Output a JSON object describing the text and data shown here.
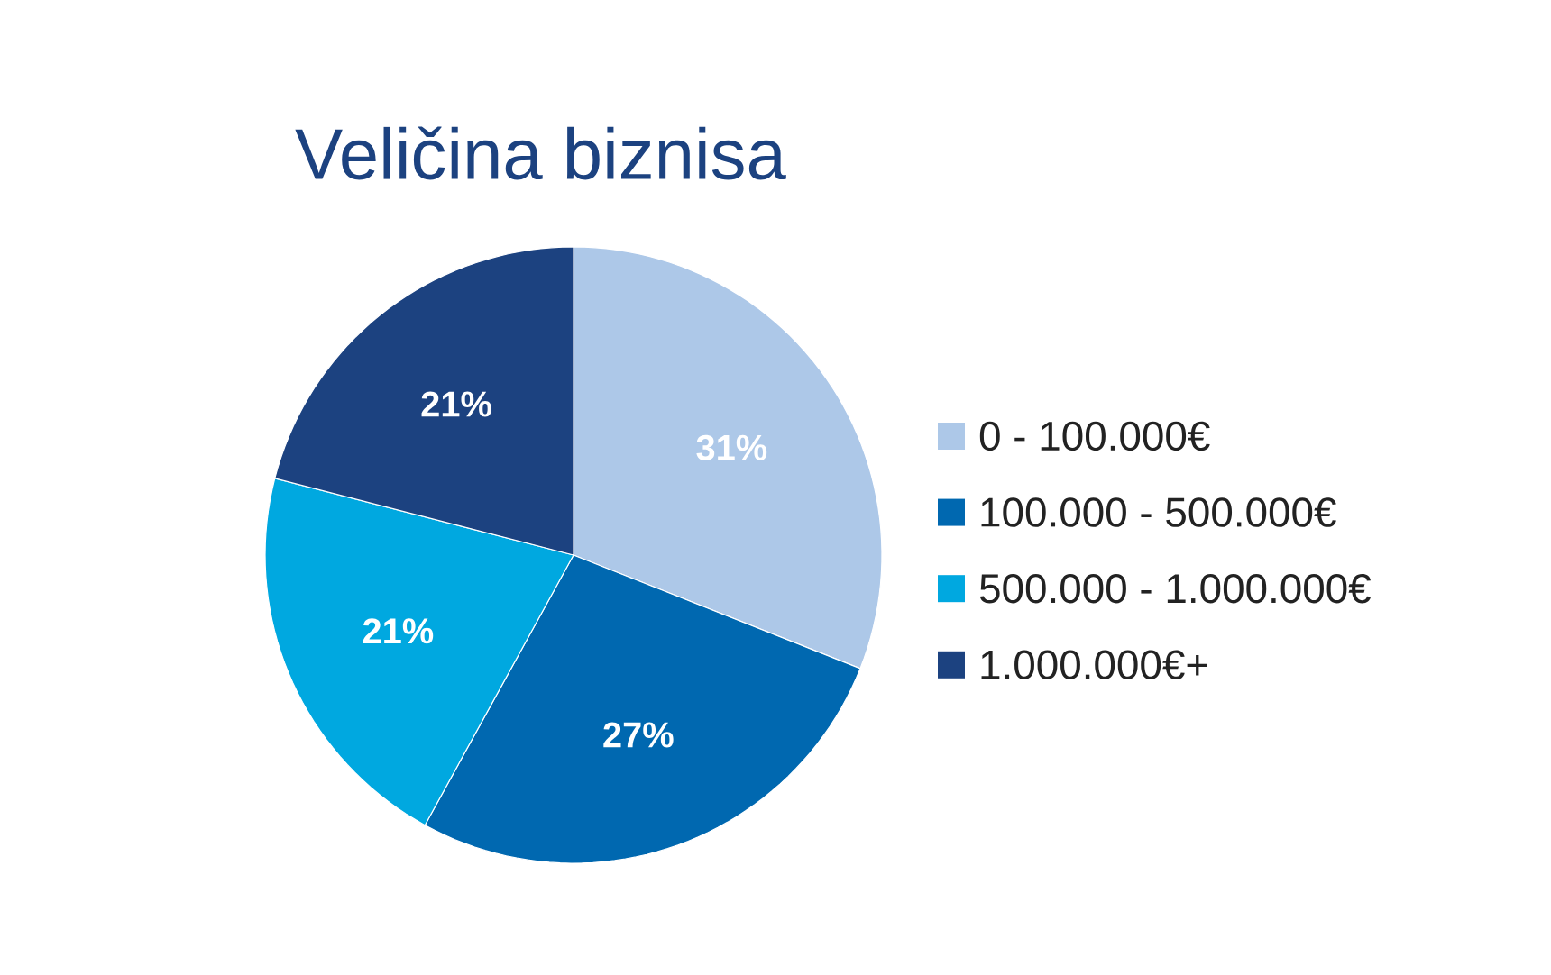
{
  "chart_data": {
    "type": "pie",
    "title": "Veličina biznisa",
    "categories": [
      "0 - 100.000€",
      "100.000  - 500.000€",
      "500.000 - 1.000.000€",
      "1.000.000€+"
    ],
    "values": [
      31,
      27,
      21,
      21
    ],
    "value_labels": [
      "31%",
      "27%",
      "21%",
      "21%"
    ],
    "colors": [
      "#adc8e8",
      "#0068b0",
      "#00a8e0",
      "#1c4280"
    ],
    "legend": "right"
  }
}
